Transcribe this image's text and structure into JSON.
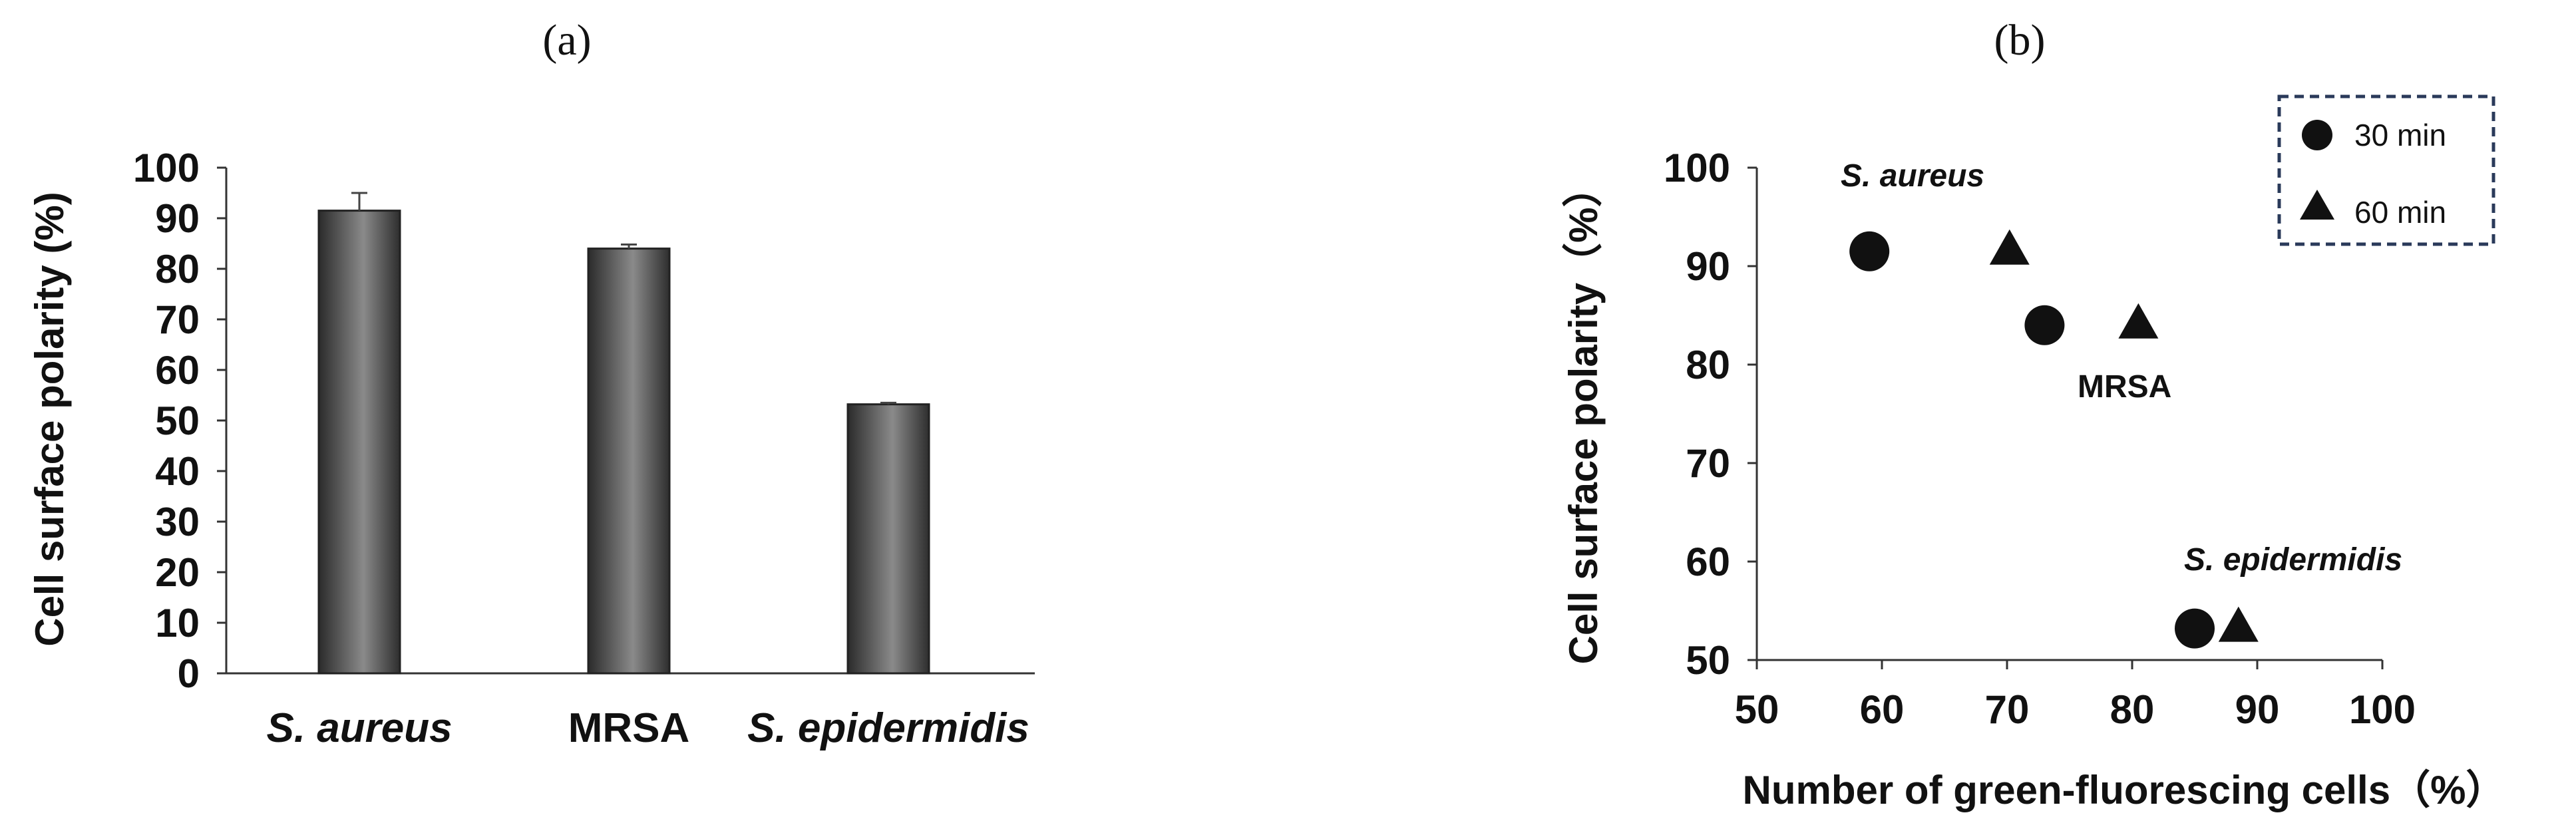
{
  "chart_data": [
    {
      "panel_label": "(a)",
      "type": "bar",
      "categories": [
        "S. aureus",
        "MRSA",
        "S. epidermidis"
      ],
      "values": [
        91.5,
        84.0,
        53.2
      ],
      "errors": [
        3.5,
        0.8,
        0.3
      ],
      "ylabel": "Cell surface polarity (%)",
      "ylim": [
        0,
        100
      ],
      "yticks": [
        0,
        10,
        20,
        30,
        40,
        50,
        60,
        70,
        80,
        90,
        100
      ],
      "bar_color": "#4a4a4a",
      "grid": false
    },
    {
      "panel_label": "(b)",
      "type": "scatter",
      "xlabel": "Number of green-fluorescing cells（%）",
      "ylabel": "Cell surface polarity（%）",
      "xlim": [
        50,
        100
      ],
      "ylim": [
        50,
        100
      ],
      "xticks": [
        50,
        60,
        70,
        80,
        90,
        100
      ],
      "yticks": [
        50,
        60,
        70,
        80,
        90,
        100
      ],
      "legend_position": "top-right",
      "grid": false,
      "series": [
        {
          "name": "30 min",
          "marker": "circle",
          "points": [
            {
              "x": 59,
              "y": 91.5
            },
            {
              "x": 73,
              "y": 84.0
            },
            {
              "x": 85,
              "y": 53.2
            }
          ]
        },
        {
          "name": "60 min",
          "marker": "triangle",
          "points": [
            {
              "x": 70.2,
              "y": 91.5
            },
            {
              "x": 80.5,
              "y": 84.0
            },
            {
              "x": 88.5,
              "y": 53.2
            }
          ]
        }
      ],
      "annotations": [
        {
          "text": "S. aureus",
          "italic": true
        },
        {
          "text": "MRSA",
          "italic": false
        },
        {
          "text": "S. epidermidis",
          "italic": true
        }
      ]
    }
  ]
}
